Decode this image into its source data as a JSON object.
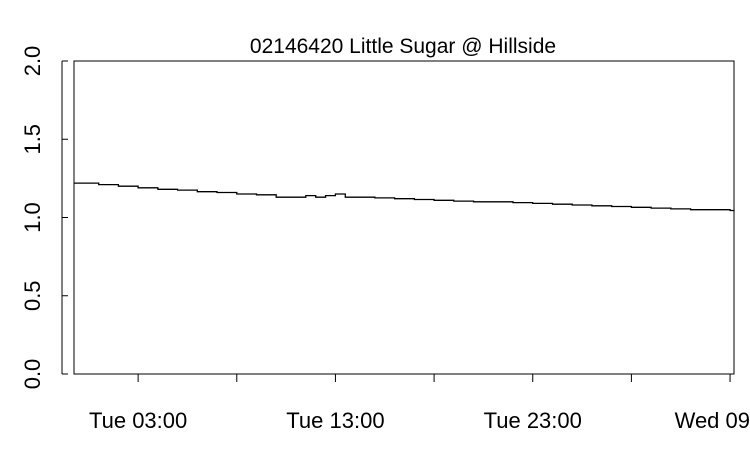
{
  "chart_data": {
    "type": "line",
    "title": "02146420 Little Sugar @ Hillside",
    "xlabel": "",
    "ylabel": "",
    "ylim": [
      0,
      2
    ],
    "yticks": [
      0.0,
      0.5,
      1.0,
      1.5,
      2.0
    ],
    "ytick_labels": [
      "0.0",
      "0.5",
      "1.0",
      "1.5",
      "2.0"
    ],
    "xlim": [
      -3.25,
      30.2
    ],
    "xticks": [
      0,
      5,
      10,
      15,
      20,
      25,
      30
    ],
    "xtick_labels": [
      {
        "at": 0,
        "label": "Tue 03:00"
      },
      {
        "at": 10,
        "label": "Tue 13:00"
      },
      {
        "at": 20,
        "label": "Tue 23:00"
      },
      {
        "at": 30,
        "label": "Wed 09"
      }
    ],
    "grid": false,
    "series": [
      {
        "x": [
          -3.25,
          -2.5,
          -2,
          -1,
          0,
          1,
          2,
          3,
          4,
          5,
          6,
          7,
          8,
          8.5,
          9,
          9.5,
          10,
          10.5,
          11,
          12,
          13,
          14,
          15,
          16,
          17,
          18,
          19,
          20,
          21,
          22,
          23,
          24,
          25,
          26,
          27,
          28,
          29,
          30,
          30.2
        ],
        "y": [
          1.22,
          1.22,
          1.21,
          1.2,
          1.19,
          1.18,
          1.175,
          1.165,
          1.16,
          1.15,
          1.145,
          1.13,
          1.13,
          1.14,
          1.13,
          1.14,
          1.15,
          1.13,
          1.13,
          1.125,
          1.12,
          1.115,
          1.11,
          1.105,
          1.1,
          1.1,
          1.095,
          1.09,
          1.085,
          1.08,
          1.075,
          1.07,
          1.065,
          1.06,
          1.055,
          1.05,
          1.05,
          1.045,
          1.04
        ]
      }
    ]
  }
}
